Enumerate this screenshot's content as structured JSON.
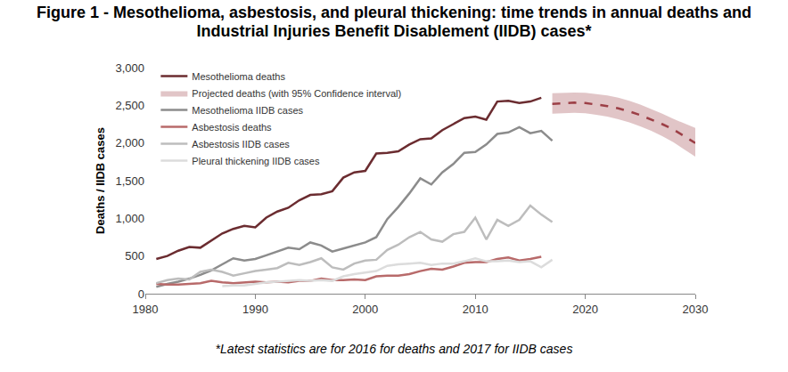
{
  "chart_data": {
    "type": "line",
    "title": "Figure 1 - Mesothelioma, asbestosis, and pleural thickening: time trends in annual deaths and Industrial Injuries Benefit Disablement (IIDB) cases*",
    "footnote": "*Latest statistics are for 2016 for deaths and 2017 for IIDB cases",
    "y_label": "Deaths / IIDB cases",
    "xlim": [
      1980,
      2030
    ],
    "xticks": [
      1980,
      1990,
      2000,
      2010,
      2020,
      2030
    ],
    "ylim": [
      0,
      3000
    ],
    "yticks": [
      0,
      500,
      {
        "value": 1000,
        "label": "1,000"
      },
      {
        "value": 1500,
        "label": "1,500"
      },
      {
        "value": 2000,
        "label": "2,000"
      },
      {
        "value": 2500,
        "label": "2,500"
      },
      {
        "value": 3000,
        "label": "3,000"
      }
    ],
    "grid": false,
    "legend": "upper left",
    "series": [
      {
        "name": "Mesothelioma deaths",
        "color": "#6b2c30",
        "line_style": "solid",
        "x": [
          1981,
          1982,
          1983,
          1984,
          1985,
          1986,
          1987,
          1988,
          1989,
          1990,
          1991,
          1992,
          1993,
          1994,
          1995,
          1996,
          1997,
          1998,
          1999,
          2000,
          2001,
          2002,
          2003,
          2004,
          2005,
          2006,
          2007,
          2008,
          2009,
          2010,
          2011,
          2012,
          2013,
          2014,
          2015,
          2016
        ],
        "values": [
          460,
          500,
          570,
          620,
          610,
          700,
          800,
          860,
          900,
          880,
          1010,
          1090,
          1140,
          1240,
          1310,
          1320,
          1360,
          1540,
          1610,
          1630,
          1860,
          1870,
          1890,
          1980,
          2050,
          2060,
          2170,
          2250,
          2330,
          2350,
          2310,
          2550,
          2560,
          2530,
          2550,
          2600
        ]
      },
      {
        "name": "Projected deaths (with 95% Confidence interval)",
        "color": "#9c3f46",
        "line_style": "dashed",
        "x": [
          2017,
          2018,
          2019,
          2020,
          2021,
          2022,
          2023,
          2024,
          2025,
          2026,
          2027,
          2028,
          2029,
          2030
        ],
        "values": [
          2520,
          2530,
          2535,
          2530,
          2510,
          2490,
          2460,
          2420,
          2370,
          2310,
          2250,
          2180,
          2090,
          2000
        ],
        "lower": [
          2390,
          2395,
          2400,
          2395,
          2375,
          2350,
          2315,
          2275,
          2220,
          2160,
          2090,
          2010,
          1920,
          1820
        ],
        "upper": [
          2660,
          2665,
          2670,
          2665,
          2650,
          2630,
          2600,
          2560,
          2510,
          2450,
          2390,
          2320,
          2260,
          2200
        ]
      },
      {
        "name": "Mesothelioma IIDB cases",
        "color": "#8c8c8c",
        "line_style": "solid",
        "x": [
          1981,
          1982,
          1983,
          1984,
          1985,
          1986,
          1987,
          1988,
          1989,
          1990,
          1991,
          1992,
          1993,
          1994,
          1995,
          1996,
          1997,
          1998,
          1999,
          2000,
          2001,
          2002,
          2003,
          2004,
          2005,
          2006,
          2007,
          2008,
          2009,
          2010,
          2011,
          2012,
          2013,
          2014,
          2015,
          2016,
          2017
        ],
        "values": [
          90,
          130,
          160,
          200,
          250,
          310,
          390,
          470,
          440,
          460,
          510,
          560,
          610,
          590,
          680,
          640,
          560,
          600,
          640,
          680,
          750,
          990,
          1150,
          1330,
          1530,
          1450,
          1610,
          1720,
          1870,
          1880,
          1980,
          2120,
          2140,
          2210,
          2130,
          2160,
          2030
        ]
      },
      {
        "name": "Asbestosis deaths",
        "color": "#b86a6a",
        "line_style": "solid",
        "x": [
          1981,
          1982,
          1983,
          1984,
          1985,
          1986,
          1987,
          1988,
          1989,
          1990,
          1991,
          1992,
          1993,
          1994,
          1995,
          1996,
          1997,
          1998,
          1999,
          2000,
          2001,
          2002,
          2003,
          2004,
          2005,
          2006,
          2007,
          2008,
          2009,
          2010,
          2011,
          2012,
          2013,
          2014,
          2015,
          2016
        ],
        "values": [
          130,
          120,
          120,
          130,
          140,
          170,
          150,
          140,
          150,
          160,
          150,
          160,
          150,
          170,
          170,
          200,
          180,
          180,
          190,
          180,
          230,
          240,
          240,
          260,
          300,
          330,
          320,
          360,
          410,
          420,
          420,
          460,
          480,
          440,
          460,
          490
        ]
      },
      {
        "name": "Asbestosis IIDB cases",
        "color": "#bdbdbd",
        "line_style": "solid",
        "x": [
          1981,
          1982,
          1983,
          1984,
          1985,
          1986,
          1987,
          1988,
          1989,
          1990,
          1991,
          1992,
          1993,
          1994,
          1995,
          1996,
          1997,
          1998,
          1999,
          2000,
          2001,
          2002,
          2003,
          2004,
          2005,
          2006,
          2007,
          2008,
          2009,
          2010,
          2011,
          2012,
          2013,
          2014,
          2015,
          2016,
          2017
        ],
        "values": [
          140,
          180,
          200,
          190,
          290,
          320,
          290,
          240,
          270,
          300,
          320,
          340,
          410,
          380,
          420,
          470,
          350,
          320,
          400,
          440,
          450,
          580,
          650,
          750,
          820,
          720,
          690,
          790,
          820,
          1010,
          720,
          980,
          900,
          980,
          1170,
          1050,
          950
        ]
      },
      {
        "name": "Pleural thickening IIDB cases",
        "color": "#dcdcdc",
        "line_style": "solid",
        "x": [
          1987,
          1988,
          1989,
          1990,
          1991,
          1992,
          1993,
          1994,
          1995,
          1996,
          1997,
          1998,
          1999,
          2000,
          2001,
          2002,
          2003,
          2004,
          2005,
          2006,
          2007,
          2008,
          2009,
          2010,
          2011,
          2012,
          2013,
          2014,
          2015,
          2016,
          2017
        ],
        "values": [
          100,
          110,
          110,
          130,
          150,
          160,
          170,
          180,
          170,
          180,
          170,
          230,
          260,
          280,
          300,
          370,
          390,
          400,
          410,
          380,
          400,
          400,
          430,
          470,
          430,
          430,
          440,
          420,
          430,
          350,
          450
        ]
      }
    ]
  }
}
